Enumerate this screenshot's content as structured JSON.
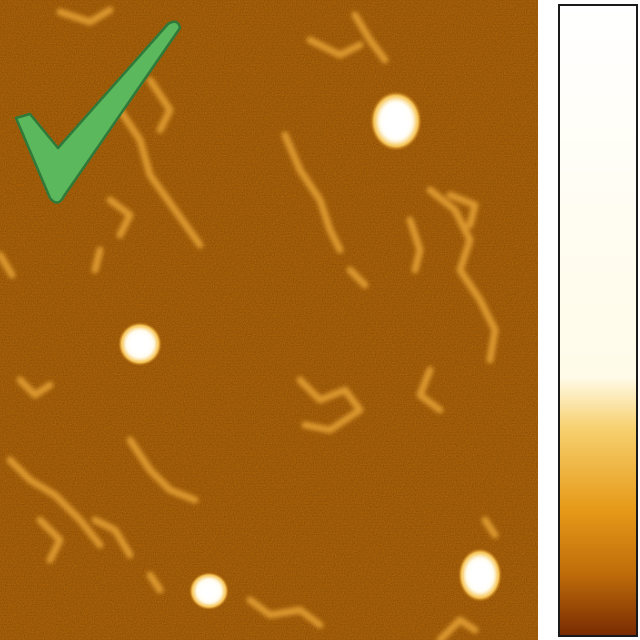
{
  "image": {
    "subject": "afm-height-map",
    "background_color": "#c06e0a",
    "feature_color": "#e8a63a",
    "particle_color": "#ffffff"
  },
  "overlay": {
    "icon": "checkmark-icon",
    "fill_color": "#5cb85c",
    "stroke_color": "#2f7a3a"
  },
  "colorbar": {
    "icon": "colorbar-scale",
    "gradient_stops": [
      "#ffffff",
      "#fffbe8",
      "#f7d170",
      "#e69a18",
      "#c06e0a",
      "#7a2c02"
    ],
    "border_color": "#1a1a1a"
  }
}
